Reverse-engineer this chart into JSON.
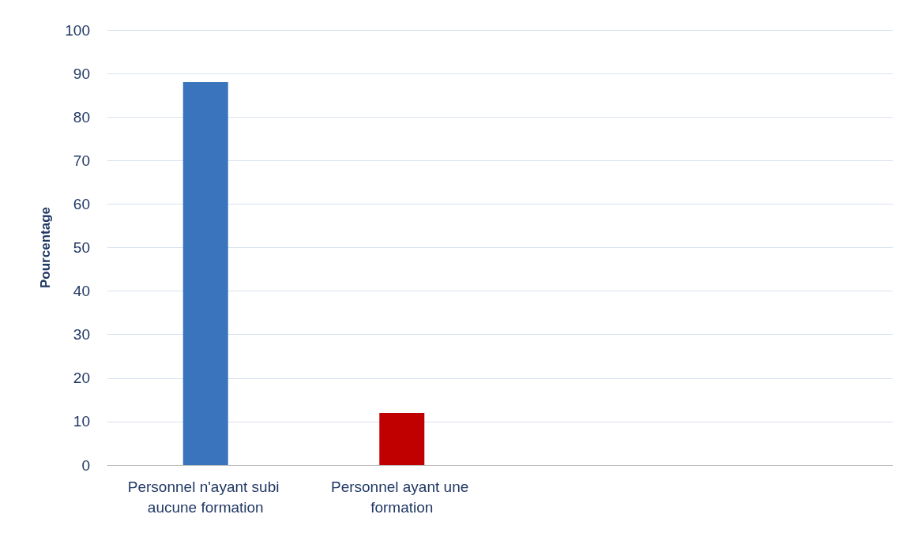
{
  "chart_data": {
    "type": "bar",
    "ylabel": "Pourcentage",
    "categories": [
      "Personnel n'ayant subi aucune formation",
      "Personnel ayant une formation",
      null,
      null
    ],
    "values": [
      88,
      12,
      null,
      null
    ],
    "colors": [
      "#3a74bd",
      "#c00000",
      null,
      null
    ],
    "ylim": [
      0,
      100
    ],
    "yticks": [
      0,
      10,
      20,
      30,
      40,
      50,
      60,
      70,
      80,
      90,
      100
    ],
    "grid": "y"
  }
}
